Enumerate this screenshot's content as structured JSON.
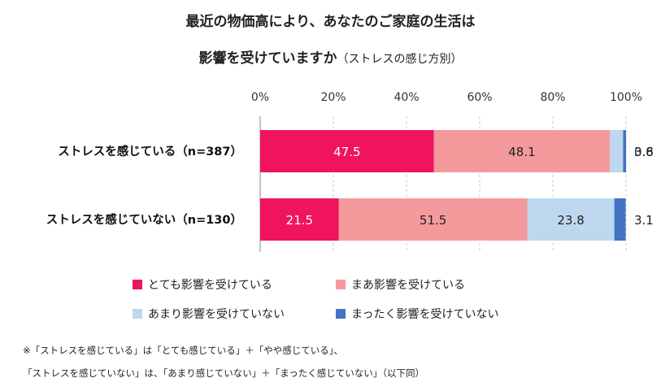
{
  "title_line1": "最近の物価高により、あなたのご家庭の生活は",
  "title_line2": "影響を受けていますか",
  "title_sub": "（ストレスの感じ方別）",
  "chart_data": {
    "type": "bar",
    "orientation": "horizontal",
    "stacked": true,
    "xlim": [
      0,
      100
    ],
    "ticks": [
      "0%",
      "20%",
      "40%",
      "60%",
      "80%",
      "100%"
    ],
    "categories": [
      "ストレスを感じている（n=387）",
      "ストレスを感じていない（n=130）"
    ],
    "series": [
      {
        "name": "とても影響を受けている",
        "color": "#f0145f",
        "values": [
          47.5,
          21.5
        ],
        "labels": [
          "47.5",
          "21.5"
        ]
      },
      {
        "name": "まあ影響を受けている",
        "color": "#f59a9c",
        "values": [
          48.1,
          51.5
        ],
        "labels": [
          "48.1",
          "51.5"
        ]
      },
      {
        "name": "あまり影響を受けていない",
        "color": "#bdd7ee",
        "values": [
          3.6,
          23.8
        ],
        "labels": [
          "3.6",
          "23.8"
        ]
      },
      {
        "name": "まったく影響を受けていない",
        "color": "#4472c4",
        "values": [
          0.8,
          3.1
        ],
        "labels": [
          "0.8",
          "3.1"
        ]
      }
    ]
  },
  "legend": [
    {
      "label": "とても影響を受けている",
      "color": "#f0145f"
    },
    {
      "label": "まあ影響を受けている",
      "color": "#f59a9c"
    },
    {
      "label": "あまり影響を受けていない",
      "color": "#bdd7ee"
    },
    {
      "label": "まったく影響を受けていない",
      "color": "#4472c4"
    }
  ],
  "note_line1": "※「ストレスを感じている」は「とても感じている」＋「やや感じている」、",
  "note_line2": "「ストレスを感じていない」は、「あまり感じていない」＋「まったく感じていない」（以下同）"
}
